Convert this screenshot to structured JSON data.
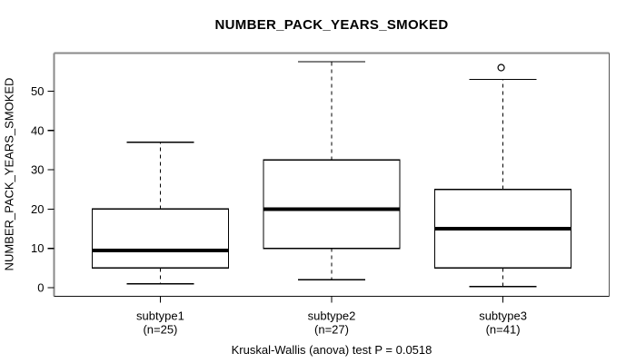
{
  "chart_data": {
    "type": "boxplot",
    "title": "NUMBER_PACK_YEARS_SMOKED",
    "ylabel": "NUMBER_PACK_YEARS_SMOKED",
    "footer": "Kruskal-Wallis (anova) test P = 0.0518",
    "yticks": [
      0,
      10,
      20,
      30,
      40,
      50
    ],
    "ylim": [
      -2.2,
      59.7
    ],
    "grid": false,
    "legend": "none",
    "categories": [
      {
        "label": "subtype1",
        "n_label": "(n=25)"
      },
      {
        "label": "subtype2",
        "n_label": "(n=27)"
      },
      {
        "label": "subtype3",
        "n_label": "(n=41)"
      }
    ],
    "series": [
      {
        "name": "subtype1",
        "n": 25,
        "whisker_low": 1,
        "q1": 5,
        "median": 9.5,
        "q3": 20,
        "whisker_high": 37,
        "outliers": []
      },
      {
        "name": "subtype2",
        "n": 27,
        "whisker_low": 2,
        "q1": 10,
        "median": 20,
        "q3": 32.5,
        "whisker_high": 57.5,
        "outliers": []
      },
      {
        "name": "subtype3",
        "n": 41,
        "whisker_low": 0.25,
        "q1": 5,
        "median": 15,
        "q3": 25,
        "whisker_high": 53,
        "outliers": [
          56
        ]
      }
    ],
    "colors": {
      "box_fill": "#ffffff",
      "line": "#000000",
      "border_top_left": "#8a8a8a",
      "border_right": "#555555",
      "border_bottom": "#111111"
    }
  }
}
